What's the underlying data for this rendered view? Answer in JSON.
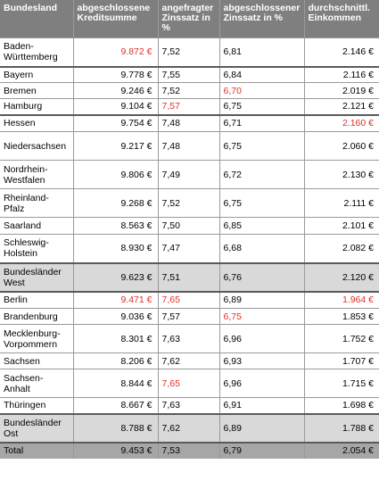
{
  "headers": [
    "Bundesland",
    "abgeschlossene Kreditsumme",
    "angefragter Zinssatz in %",
    "abgeschlossener Zinssatz in %",
    "durchschnittl. Einkommen"
  ],
  "rows": [
    {
      "state": "Baden-Württemberg",
      "sum": "9.872 €",
      "req": "7,52",
      "closed": "6,81",
      "income": "2.146 €",
      "red": [
        1
      ]
    },
    {
      "state": "Bayern",
      "sum": "9.778 €",
      "req": "7,55",
      "closed": "6,84",
      "income": "2.116 €",
      "red": []
    },
    {
      "state": "Bremen",
      "sum": "9.246 €",
      "req": "7,52",
      "closed": "6,70",
      "income": "2.019 €",
      "red": [
        3
      ]
    },
    {
      "state": "Hamburg",
      "sum": "9.104 €",
      "req": "7,57",
      "closed": "6,75",
      "income": "2.121 €",
      "red": [
        2
      ]
    },
    {
      "state": "Hessen",
      "sum": "9.754 €",
      "req": "7,48",
      "closed": "6,71",
      "income": "2.160 €",
      "red": [
        4
      ]
    },
    {
      "state": "Niedersachsen",
      "sum": "9.217 €",
      "req": "7,48",
      "closed": "6,75",
      "income": "2.060 €",
      "red": []
    },
    {
      "state": "Nordrhein-Westfalen",
      "sum": "9.806 €",
      "req": "7,49",
      "closed": "6,72",
      "income": "2.130 €",
      "red": []
    },
    {
      "state": "Rheinland-Pfalz",
      "sum": "9.268 €",
      "req": "7,52",
      "closed": "6,75",
      "income": "2.111 €",
      "red": []
    },
    {
      "state": "Saarland",
      "sum": "8.563 €",
      "req": "7,50",
      "closed": "6,85",
      "income": "2.101 €",
      "red": []
    },
    {
      "state": "Schleswig-Holstein",
      "sum": "8.930 €",
      "req": "7,47",
      "closed": "6,68",
      "income": "2.082 €",
      "red": []
    },
    {
      "state": "Bundesländer West",
      "sum": "9.623 €",
      "req": "7,51",
      "closed": "6,76",
      "income": "2.120 €",
      "red": [],
      "shade": true
    },
    {
      "state": "Berlin",
      "sum": "9.471 €",
      "req": "7,65",
      "closed": "6,89",
      "income": "1.964 €",
      "red": [
        1,
        2,
        4
      ]
    },
    {
      "state": "Brandenburg",
      "sum": "9.036 €",
      "req": "7,57",
      "closed": "6,75",
      "income": "1.853 €",
      "red": [
        3
      ]
    },
    {
      "state": "Mecklenburg-Vorpommern",
      "sum": "8.301 €",
      "req": "7,63",
      "closed": "6,96",
      "income": "1.752 €",
      "red": []
    },
    {
      "state": "Sachsen",
      "sum": "8.206 €",
      "req": "7,62",
      "closed": "6,93",
      "income": "1.707 €",
      "red": []
    },
    {
      "state": "Sachsen-Anhalt",
      "sum": "8.844 €",
      "req": "7,65",
      "closed": "6,96",
      "income": "1.715 €",
      "red": [
        2
      ]
    },
    {
      "state": "Thüringen",
      "sum": "8.667 €",
      "req": "7,63",
      "closed": "6,91",
      "income": "1.698 €",
      "red": []
    },
    {
      "state": "Bundesländer Ost",
      "sum": "8.788 €",
      "req": "7,62",
      "closed": "6,89",
      "income": "1.788 €",
      "red": [],
      "shade": true
    },
    {
      "state": "Total",
      "sum": "9.453 €",
      "req": "7,53",
      "closed": "6,79",
      "income": "2.054 €",
      "red": [],
      "total": true
    }
  ],
  "colors": {
    "header_bg": "#7f7f7f",
    "shade_bg": "#d9d9d9",
    "total_bg": "#a6a6a6",
    "highlight": "#e0302a"
  }
}
